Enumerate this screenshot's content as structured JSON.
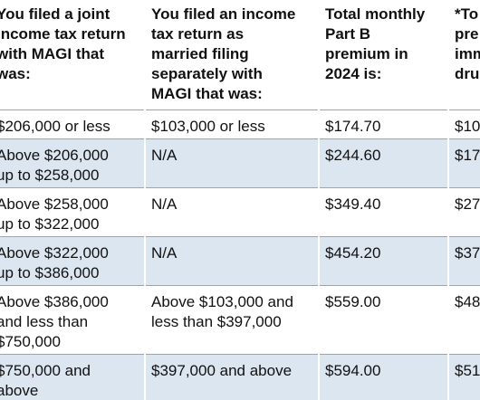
{
  "table": {
    "header": [
      [
        "You filed a joint",
        "income tax return",
        "with MAGI that",
        "was:"
      ],
      [
        "You filed an income",
        "tax return as",
        "married filing",
        "separately with",
        "MAGI that was:"
      ],
      [
        "Total monthly",
        "Part B",
        "premium in",
        "2024 is:"
      ],
      [
        "*To",
        "pre",
        "imm",
        "dru"
      ]
    ],
    "rows": [
      [
        [
          "$206,000 or less"
        ],
        [
          "$103,000 or less"
        ],
        [
          "$174.70"
        ],
        [
          "$10"
        ]
      ],
      [
        [
          "Above $206,000",
          "up to $258,000"
        ],
        [
          "N/A"
        ],
        [
          "$244.60"
        ],
        [
          "$17"
        ]
      ],
      [
        [
          "Above $258,000",
          "up to $322,000"
        ],
        [
          "N/A"
        ],
        [
          "$349.40"
        ],
        [
          "$27"
        ]
      ],
      [
        [
          "Above $322,000",
          "up to $386,000"
        ],
        [
          "N/A"
        ],
        [
          "$454.20"
        ],
        [
          "$37"
        ]
      ],
      [
        [
          "Above $386,000",
          "and less than",
          "$750,000"
        ],
        [
          "Above $103,000 and",
          "less than $397,000"
        ],
        [
          "$559.00"
        ],
        [
          "$48"
        ]
      ],
      [
        [
          "$750,000 and",
          "above"
        ],
        [
          "$397,000 and above"
        ],
        [
          "$594.00"
        ],
        [
          "$51"
        ]
      ]
    ]
  }
}
